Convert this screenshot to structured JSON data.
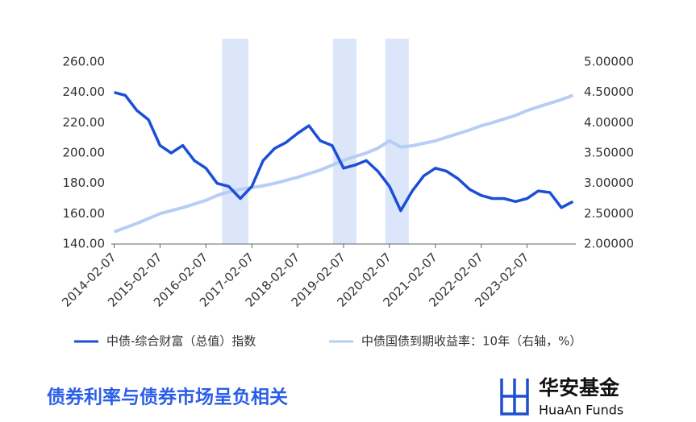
{
  "chart_data": {
    "type": "line",
    "x": [
      "2014-02-07",
      "2014-05-07",
      "2014-08-07",
      "2014-11-07",
      "2015-02-07",
      "2015-05-07",
      "2015-08-07",
      "2015-11-07",
      "2016-02-07",
      "2016-05-07",
      "2016-08-07",
      "2016-11-07",
      "2017-02-07",
      "2017-05-07",
      "2017-08-07",
      "2017-11-07",
      "2018-02-07",
      "2018-05-07",
      "2018-08-07",
      "2018-11-07",
      "2019-02-07",
      "2019-05-07",
      "2019-08-07",
      "2019-11-07",
      "2020-02-07",
      "2020-05-07",
      "2020-08-07",
      "2020-11-07",
      "2021-02-07",
      "2021-05-07",
      "2021-08-07",
      "2021-11-07",
      "2022-02-07",
      "2022-05-07",
      "2022-08-07",
      "2022-11-07",
      "2023-02-07",
      "2023-05-07",
      "2023-08-07",
      "2023-11-07",
      "2024-02-07"
    ],
    "series": [
      {
        "name": "中债-综合财富（总值）指数",
        "color": "#1a4fd6",
        "values": [
          240,
          238,
          228,
          222,
          205,
          200,
          205,
          195,
          190,
          180,
          178,
          170,
          178,
          195,
          203,
          207,
          213,
          218,
          208,
          205,
          190,
          192,
          195,
          188,
          178,
          162,
          175,
          185,
          190,
          188,
          183,
          176,
          172,
          170,
          170,
          168,
          170,
          175,
          174,
          164,
          168
        ]
      },
      {
        "name": "中债国债到期收益率：10年（右轴，%）",
        "color": "#b8cdf5",
        "axis": "y2",
        "values": [
          2.2,
          2.27,
          2.34,
          2.42,
          2.5,
          2.55,
          2.6,
          2.66,
          2.72,
          2.8,
          2.86,
          2.9,
          2.93,
          2.96,
          3.0,
          3.05,
          3.1,
          3.16,
          3.22,
          3.3,
          3.38,
          3.44,
          3.5,
          3.58,
          3.7,
          3.6,
          3.62,
          3.66,
          3.7,
          3.76,
          3.82,
          3.88,
          3.95,
          4.0,
          4.06,
          4.12,
          4.2,
          4.26,
          4.32,
          4.38,
          4.45
        ]
      }
    ],
    "shaded_periods": [
      [
        "2016-06-15",
        "2017-01-10"
      ],
      [
        "2018-11-15",
        "2019-05-20"
      ],
      [
        "2020-01-05",
        "2020-07-10"
      ]
    ],
    "xlim": [
      "2014-01-15",
      "2024-03-01"
    ],
    "xticks": [
      "2014-02-07",
      "2015-02-07",
      "2016-02-07",
      "2017-02-07",
      "2018-02-07",
      "2019-02-07",
      "2020-02-07",
      "2021-02-07",
      "2022-02-07",
      "2023-02-07"
    ],
    "ylim": [
      140,
      260
    ],
    "yticks": [
      {
        "value": 140,
        "label": "140.00"
      },
      {
        "value": 160,
        "label": "160.00"
      },
      {
        "value": 180,
        "label": "180.00"
      },
      {
        "value": 200,
        "label": "200.00"
      },
      {
        "value": 220,
        "label": "220.00"
      },
      {
        "value": 240,
        "label": "240.00"
      },
      {
        "value": 260,
        "label": "260.00"
      }
    ],
    "y2lim": [
      2,
      5
    ],
    "y2ticks": [
      {
        "value": 2,
        "label": "2.00000"
      },
      {
        "value": 2.5,
        "label": "2.50000"
      },
      {
        "value": 3,
        "label": "3.00000"
      },
      {
        "value": 3.5,
        "label": "3.50000"
      },
      {
        "value": 4,
        "label": "4.00000"
      },
      {
        "value": 4.5,
        "label": "4.50000"
      },
      {
        "value": 5,
        "label": "5.00000"
      }
    ],
    "shade_color": "#dbe6fb"
  },
  "caption": "债券利率与债券市场呈负相关",
  "logo": {
    "name": "华安基金",
    "latin": "HuaAn Funds"
  }
}
